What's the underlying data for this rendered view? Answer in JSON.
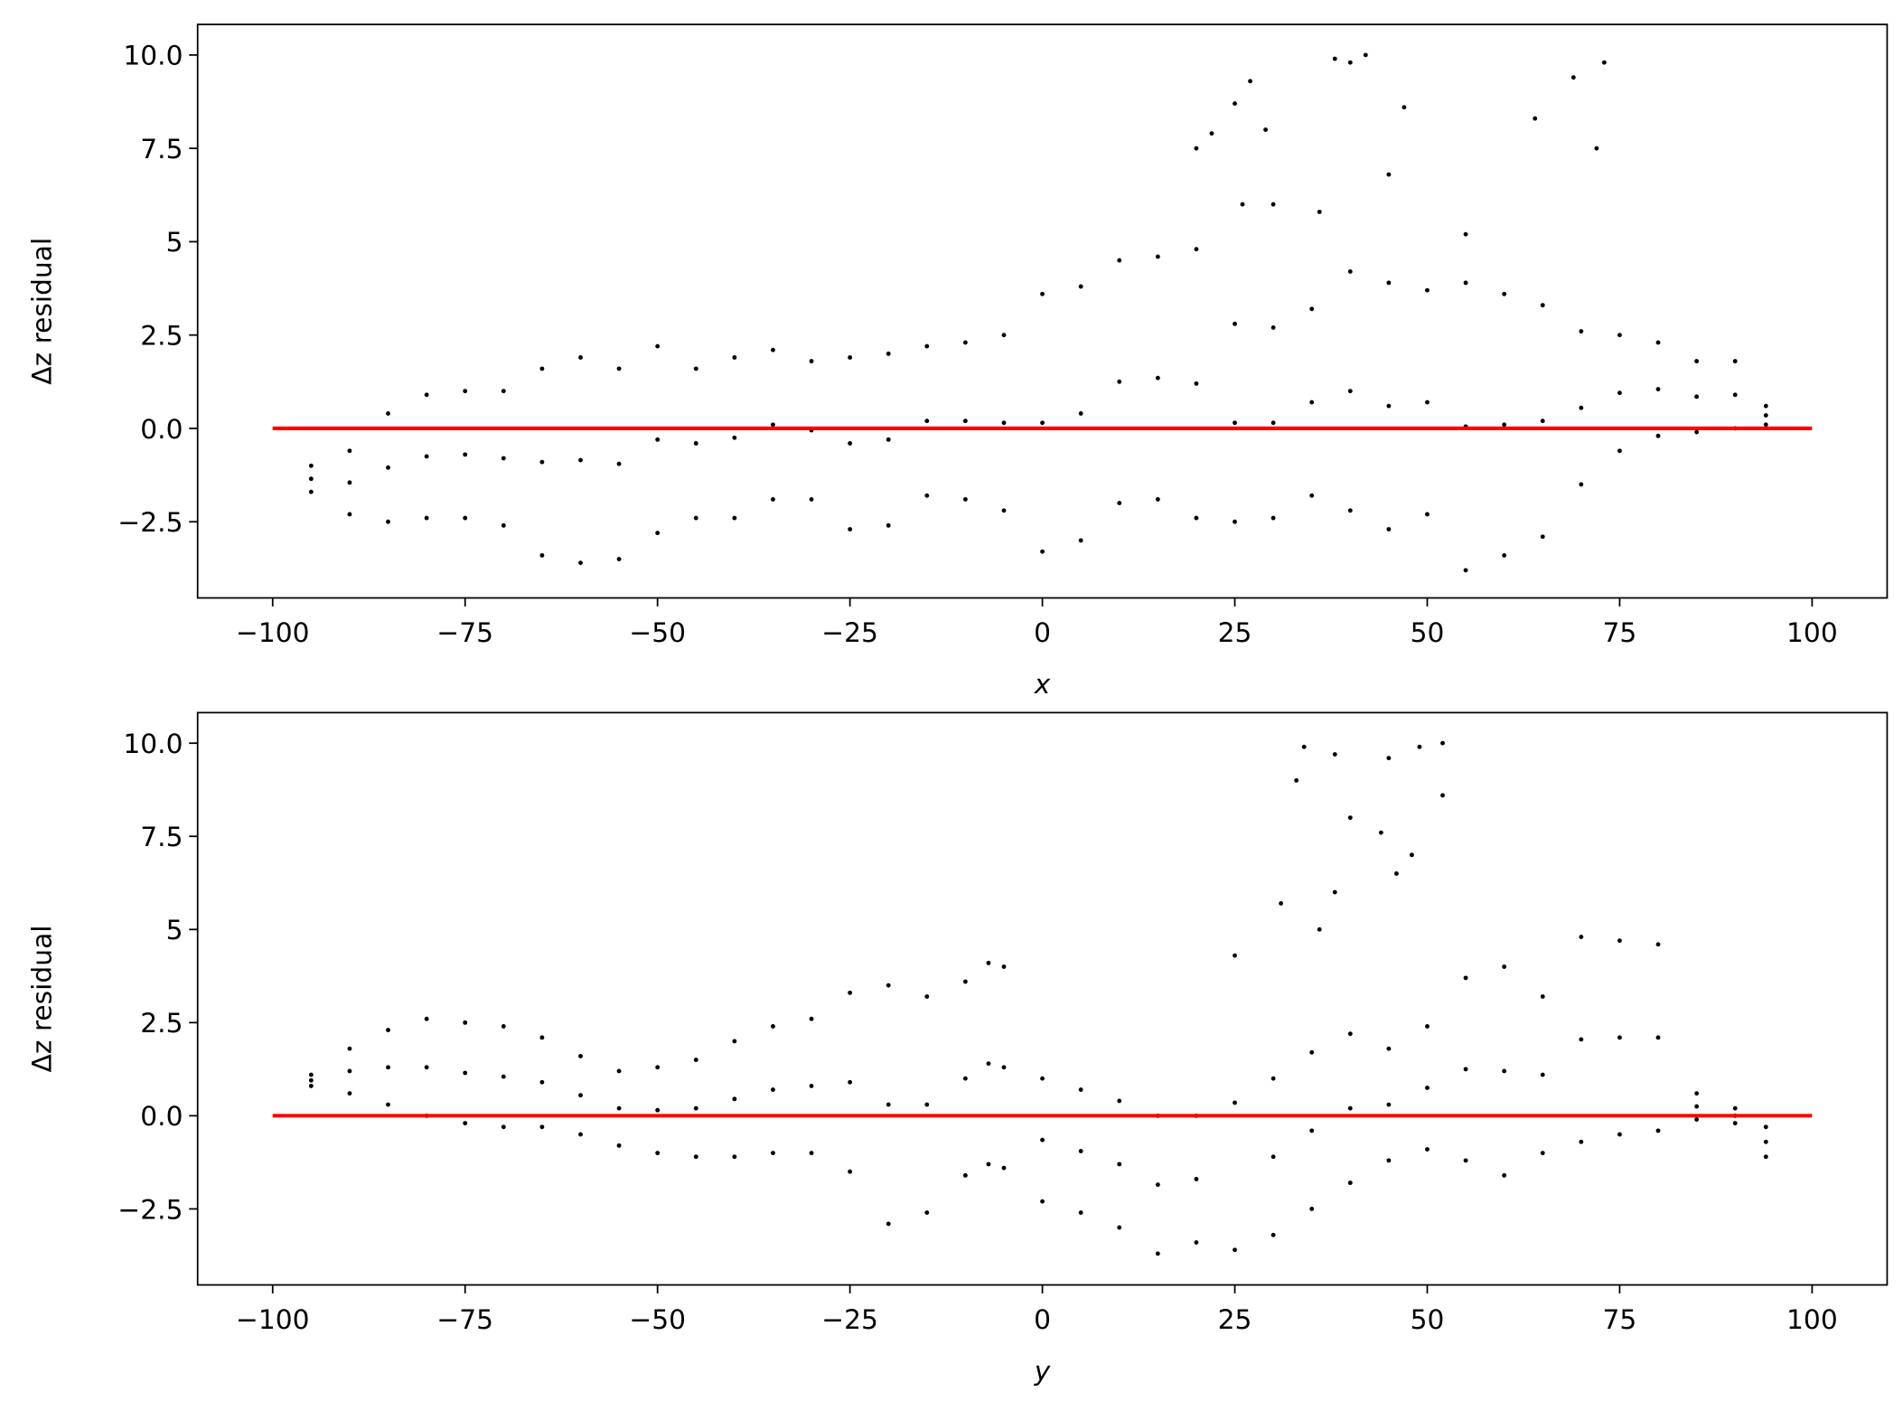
{
  "chart_data": [
    {
      "type": "scatter",
      "xlabel": "x",
      "ylabel": "Δz residual",
      "xlim": [
        -109.75,
        109.75
      ],
      "ylim": [
        -4.54,
        10.82
      ],
      "xticks": [
        {
          "value": -100,
          "label": "−100"
        },
        {
          "value": -75,
          "label": "−75"
        },
        {
          "value": -50,
          "label": "−50"
        },
        {
          "value": -25,
          "label": "−25"
        },
        0,
        25,
        50,
        75,
        100
      ],
      "yticks": [
        {
          "value": -2.5,
          "label": "−2.5"
        },
        {
          "value": 0,
          "label": "0.0"
        },
        2.5,
        5.0,
        7.5,
        {
          "value": 10,
          "label": "10.0"
        }
      ],
      "series": [
        {
          "type": "scatter",
          "color": "#000000",
          "x": [
            -95,
            -95,
            -95,
            -90,
            -90,
            -90,
            -85,
            -85,
            -85,
            -80,
            -80,
            -80,
            -75,
            -75,
            -75,
            -70,
            -70,
            -70,
            -65,
            -65,
            -65,
            -60,
            -60,
            -60,
            -55,
            -55,
            -55,
            -50,
            -50,
            -50,
            -45,
            -45,
            -45,
            -40,
            -40,
            -40,
            -35,
            -35,
            -35,
            -30,
            -30,
            -30,
            -25,
            -25,
            -25,
            -20,
            -20,
            -20,
            -15,
            -15,
            -15,
            -10,
            -10,
            -10,
            -5,
            -5,
            -5,
            0,
            0,
            0,
            5,
            5,
            5,
            10,
            10,
            10,
            15,
            15,
            15,
            20,
            20,
            20,
            25,
            25,
            25,
            30,
            30,
            30,
            35,
            35,
            35,
            40,
            40,
            40,
            45,
            45,
            45,
            50,
            50,
            50,
            55,
            55,
            55,
            60,
            60,
            60,
            65,
            65,
            65,
            70,
            70,
            70,
            75,
            75,
            75,
            80,
            80,
            80,
            85,
            85,
            85,
            90,
            90,
            90,
            94,
            94,
            94,
            20,
            22,
            25,
            27,
            29,
            38,
            40,
            42,
            47,
            64,
            69,
            73,
            72,
            30,
            45,
            55,
            26,
            36
          ],
          "y": [
            -1.7,
            -1.35,
            -1.0,
            -2.3,
            -1.45,
            -0.6,
            -2.5,
            -1.05,
            0.4,
            -2.4,
            -0.75,
            0.9,
            -2.4,
            -0.7,
            1.0,
            -2.6,
            -0.8,
            1.0,
            -3.4,
            -0.9,
            1.6,
            -3.6,
            -0.85,
            1.9,
            -3.5,
            -0.95,
            1.6,
            -2.8,
            -0.3,
            2.2,
            -2.4,
            -0.4,
            1.6,
            -2.4,
            -0.25,
            1.9,
            -1.9,
            0.1,
            2.1,
            -1.9,
            -0.05,
            1.8,
            -2.7,
            -0.4,
            1.9,
            -2.6,
            -0.3,
            2.0,
            -1.8,
            0.2,
            2.2,
            -1.9,
            0.2,
            2.3,
            -2.2,
            0.15,
            2.5,
            -3.3,
            0.15,
            3.6,
            -3.0,
            0.4,
            3.8,
            -2.0,
            1.25,
            4.5,
            -1.9,
            1.35,
            4.6,
            -2.4,
            1.2,
            4.8,
            -2.5,
            0.15,
            2.8,
            -2.4,
            0.15,
            2.7,
            -1.8,
            0.7,
            3.2,
            -2.2,
            1.0,
            4.2,
            -2.7,
            0.6,
            3.9,
            -2.3,
            0.7,
            3.7,
            -3.8,
            0.05,
            3.9,
            -3.4,
            0.1,
            3.6,
            -2.9,
            0.2,
            3.3,
            -1.5,
            0.55,
            2.6,
            -0.6,
            0.95,
            2.5,
            -0.2,
            1.05,
            2.3,
            -0.1,
            0.85,
            1.8,
            0.0,
            0.9,
            1.8,
            0.1,
            0.35,
            0.6,
            7.5,
            7.9,
            8.7,
            9.3,
            8.0,
            9.9,
            9.8,
            10.0,
            8.6,
            8.3,
            9.4,
            9.8,
            7.5,
            6.0,
            6.8,
            5.2,
            6.0,
            5.8
          ]
        },
        {
          "type": "line",
          "color": "#ff0000",
          "x": [
            -100,
            100
          ],
          "y": [
            0,
            0
          ]
        }
      ]
    },
    {
      "type": "scatter",
      "xlabel": "y",
      "ylabel": "Δz residual",
      "xlim": [
        -109.75,
        109.75
      ],
      "ylim": [
        -4.54,
        10.82
      ],
      "xticks": [
        {
          "value": -100,
          "label": "−100"
        },
        {
          "value": -75,
          "label": "−75"
        },
        {
          "value": -50,
          "label": "−50"
        },
        {
          "value": -25,
          "label": "−25"
        },
        0,
        25,
        50,
        75,
        100
      ],
      "yticks": [
        {
          "value": -2.5,
          "label": "−2.5"
        },
        {
          "value": 0,
          "label": "0.0"
        },
        2.5,
        5.0,
        7.5,
        {
          "value": 10,
          "label": "10.0"
        }
      ],
      "series": [
        {
          "type": "scatter",
          "color": "#000000",
          "x": [
            -95,
            -95,
            -95,
            -90,
            -90,
            -90,
            -85,
            -85,
            -85,
            -80,
            -80,
            -80,
            -75,
            -75,
            -75,
            -70,
            -70,
            -70,
            -65,
            -65,
            -65,
            -60,
            -60,
            -60,
            -55,
            -55,
            -55,
            -50,
            -50,
            -50,
            -45,
            -45,
            -45,
            -40,
            -40,
            -40,
            -35,
            -35,
            -35,
            -30,
            -30,
            -30,
            -25,
            -25,
            -25,
            -20,
            -20,
            -20,
            -15,
            -15,
            -15,
            -10,
            -10,
            -10,
            -7,
            -7,
            -7,
            -5,
            -5,
            -5,
            0,
            0,
            0,
            5,
            5,
            5,
            10,
            10,
            10,
            15,
            15,
            15,
            20,
            20,
            20,
            25,
            25,
            25,
            30,
            30,
            30,
            35,
            35,
            35,
            40,
            40,
            40,
            45,
            45,
            45,
            50,
            50,
            50,
            55,
            55,
            55,
            60,
            60,
            60,
            65,
            65,
            65,
            70,
            70,
            70,
            75,
            75,
            75,
            80,
            80,
            80,
            85,
            85,
            85,
            90,
            90,
            90,
            94,
            94,
            94,
            34,
            38,
            45,
            49,
            52,
            33,
            40,
            44,
            48,
            52,
            31,
            36,
            38,
            46
          ],
          "y": [
            0.8,
            0.95,
            1.1,
            0.6,
            1.2,
            1.8,
            0.3,
            1.3,
            2.3,
            0.0,
            1.3,
            2.6,
            -0.2,
            1.15,
            2.5,
            -0.3,
            1.05,
            2.4,
            -0.3,
            0.9,
            2.1,
            -0.5,
            0.55,
            1.6,
            -0.8,
            0.2,
            1.2,
            -1.0,
            0.15,
            1.3,
            -1.1,
            0.2,
            1.5,
            -1.1,
            0.45,
            2.0,
            -1.0,
            0.7,
            2.4,
            -1.0,
            0.8,
            2.6,
            -1.5,
            0.9,
            3.3,
            -2.9,
            0.3,
            3.5,
            -2.6,
            0.3,
            3.2,
            -1.6,
            1.0,
            3.6,
            -1.3,
            1.4,
            4.1,
            -1.4,
            1.3,
            4.0,
            -2.3,
            -0.65,
            1.0,
            -2.6,
            -0.95,
            0.7,
            -3.0,
            -1.3,
            0.4,
            -3.7,
            -1.85,
            0.0,
            -3.4,
            -1.7,
            0.0,
            -3.6,
            0.35,
            4.3,
            -3.2,
            -1.1,
            1.0,
            -2.5,
            -0.4,
            1.7,
            -1.8,
            0.2,
            2.2,
            -1.2,
            0.3,
            1.8,
            -0.9,
            0.75,
            2.4,
            -1.2,
            1.25,
            3.7,
            -1.6,
            1.2,
            4.0,
            -1.0,
            1.1,
            3.2,
            -0.7,
            2.05,
            4.8,
            -0.5,
            2.1,
            4.7,
            -0.4,
            2.1,
            4.6,
            -0.1,
            0.25,
            0.6,
            -0.2,
            0.0,
            0.2,
            -1.1,
            -0.7,
            -0.3,
            9.9,
            9.7,
            9.6,
            9.9,
            10.0,
            9.0,
            8.0,
            7.6,
            7.0,
            8.6,
            5.7,
            5.0,
            6.0,
            6.5
          ]
        },
        {
          "type": "line",
          "color": "#ff0000",
          "x": [
            -100,
            100
          ],
          "y": [
            0,
            0
          ]
        }
      ]
    }
  ]
}
